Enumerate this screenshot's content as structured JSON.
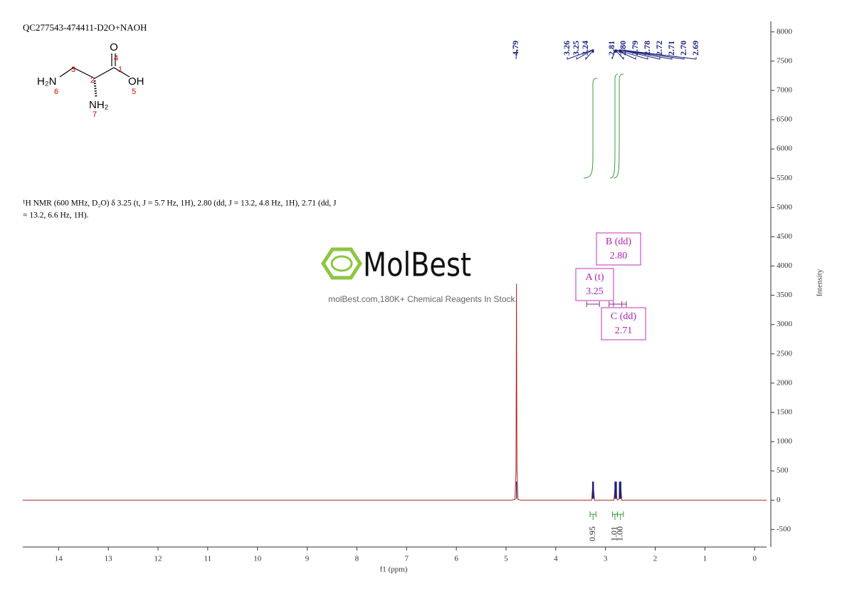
{
  "chart_data": {
    "type": "line",
    "title": "QC277543-474411-D2O+NAOH",
    "description": [
      "¹H NMR (600 MHz, D₂O) δ 3.25 (t, J = 5.7 Hz, 1H), 2.80 (dd, J = 13.2, 4.8 Hz, 1H), 2.71 (dd, J",
      "= 13.2, 6.6 Hz, 1H)."
    ],
    "x_label": "f1 (ppm)",
    "y_label": "Intensity",
    "watermark": {
      "brand": "MolBest",
      "tagline": "molBest.com,180K+ Chemical Reagents In Stock."
    },
    "structure": {
      "o": "O",
      "oh": "OH",
      "h2n": "H₂N",
      "nh2": "NH₂",
      "n1": "1",
      "n2": "2",
      "n3": "3",
      "n4": "4",
      "n5": "5",
      "n6": "6",
      "n7": "7"
    },
    "xlim": [
      14.72,
      -0.24
    ],
    "xticks": [
      14,
      13,
      12,
      11,
      10,
      9,
      8,
      7,
      6,
      5,
      4,
      3,
      2,
      1,
      0
    ],
    "ylim": [
      -800,
      8180
    ],
    "yticks": [
      -500,
      0,
      500,
      1000,
      1500,
      2000,
      2500,
      3000,
      3500,
      4000,
      4500,
      5000,
      5500,
      6000,
      6500,
      7000,
      7500,
      8000
    ],
    "series": [
      {
        "color": "#b22222",
        "x": [
          14.72,
          4.9,
          4.82,
          4.8,
          4.79,
          4.78,
          4.76,
          4.7,
          3.28,
          3.26,
          3.255,
          3.25,
          3.245,
          3.24,
          3.22,
          2.83,
          2.81,
          2.805,
          2.8,
          2.795,
          2.79,
          2.785,
          2.78,
          2.775,
          2.75,
          2.725,
          2.72,
          2.715,
          2.71,
          2.705,
          2.7,
          2.695,
          2.69,
          2.67,
          -0.24
        ],
        "values": [
          0,
          0,
          10,
          500,
          3700,
          500,
          10,
          0,
          0,
          200,
          40,
          300,
          40,
          200,
          0,
          0,
          200,
          40,
          250,
          40,
          230,
          40,
          200,
          30,
          0,
          30,
          220,
          40,
          260,
          40,
          230,
          40,
          190,
          0,
          0
        ]
      }
    ],
    "peaks": [
      4.79,
      3.26,
      3.25,
      3.24,
      2.81,
      {
        "value": 2.8,
        "label": "2.80"
      },
      2.79,
      2.78,
      2.72,
      2.71,
      {
        "value": 2.7,
        "label": "2.70"
      },
      2.69
    ],
    "integrals": [
      {
        "value": 0.95,
        "range": [
          3.31,
          3.19
        ]
      },
      {
        "value": 1.01,
        "range": [
          2.86,
          2.76
        ]
      },
      {
        "value": 1,
        "label": "1.00",
        "range": [
          2.76,
          2.64
        ]
      }
    ],
    "multiplets": [
      {
        "label": "A (t)",
        "shift": 3.25
      },
      {
        "label": "B (dd)",
        "shift": {
          "value": 2.8,
          "label": "2.80"
        }
      },
      {
        "label": "C (dd)",
        "shift": 2.71
      }
    ]
  }
}
